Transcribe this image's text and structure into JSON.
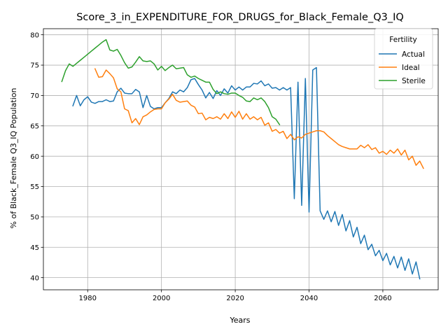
{
  "chart_data": {
    "type": "line",
    "title": "Score_3_in_EXPENDITURE_FOR_DRUGS_for_Black_Female_Q3_IQ",
    "xlabel": "Years",
    "ylabel": "% of Black_Female Q3_IQ Population",
    "xlim": [
      1968,
      2075
    ],
    "ylim": [
      38.0,
      81.0
    ],
    "x_ticks": [
      1980,
      2000,
      2020,
      2040,
      2060
    ],
    "y_ticks": [
      40,
      45,
      50,
      55,
      60,
      65,
      70,
      75,
      80
    ],
    "grid": true,
    "legend": {
      "title": "Fertility",
      "placement": "top-right"
    },
    "series": [
      {
        "name": "Actual",
        "color": "#1f77b4",
        "points": [
          [
            1976,
            68.3
          ],
          [
            1977,
            70.0
          ],
          [
            1978,
            68.3
          ],
          [
            1979,
            69.3
          ],
          [
            1980,
            69.8
          ],
          [
            1981,
            68.9
          ],
          [
            1982,
            68.7
          ],
          [
            1983,
            69.0
          ],
          [
            1984,
            69.0
          ],
          [
            1985,
            69.3
          ],
          [
            1986,
            69.0
          ],
          [
            1987,
            69.1
          ],
          [
            1988,
            70.6
          ],
          [
            1989,
            71.2
          ],
          [
            1990,
            70.4
          ],
          [
            1991,
            70.3
          ],
          [
            1992,
            70.3
          ],
          [
            1993,
            71.0
          ],
          [
            1994,
            70.6
          ],
          [
            1995,
            68.0
          ],
          [
            1996,
            70.0
          ],
          [
            1997,
            68.2
          ],
          [
            1998,
            67.8
          ],
          [
            1999,
            68.0
          ],
          [
            2000,
            68.0
          ],
          [
            2001,
            68.8
          ],
          [
            2002,
            69.5
          ],
          [
            2003,
            70.6
          ],
          [
            2004,
            70.3
          ],
          [
            2005,
            70.9
          ],
          [
            2006,
            70.6
          ],
          [
            2007,
            71.3
          ],
          [
            2008,
            72.6
          ],
          [
            2009,
            72.8
          ],
          [
            2010,
            71.8
          ],
          [
            2011,
            70.9
          ],
          [
            2012,
            69.6
          ],
          [
            2013,
            70.5
          ],
          [
            2014,
            69.5
          ],
          [
            2015,
            70.8
          ],
          [
            2016,
            70.0
          ],
          [
            2017,
            71.1
          ],
          [
            2018,
            70.4
          ],
          [
            2019,
            71.6
          ],
          [
            2020,
            70.9
          ],
          [
            2021,
            71.4
          ],
          [
            2022,
            70.9
          ],
          [
            2023,
            71.4
          ],
          [
            2024,
            71.4
          ],
          [
            2025,
            72.0
          ],
          [
            2026,
            71.9
          ],
          [
            2027,
            72.4
          ],
          [
            2028,
            71.6
          ],
          [
            2029,
            71.9
          ],
          [
            2030,
            71.2
          ],
          [
            2031,
            71.3
          ],
          [
            2032,
            70.9
          ],
          [
            2033,
            71.3
          ],
          [
            2034,
            70.9
          ],
          [
            2035,
            71.3
          ],
          [
            2036,
            53.0
          ],
          [
            2037,
            72.2
          ],
          [
            2038,
            51.9
          ],
          [
            2039,
            72.8
          ],
          [
            2040,
            50.8
          ],
          [
            2041,
            74.2
          ],
          [
            2042,
            74.6
          ],
          [
            2043,
            51.0
          ],
          [
            2044,
            49.6
          ],
          [
            2045,
            51.0
          ],
          [
            2046,
            49.2
          ],
          [
            2047,
            50.9
          ],
          [
            2048,
            48.6
          ],
          [
            2049,
            50.4
          ],
          [
            2050,
            47.7
          ],
          [
            2051,
            49.4
          ],
          [
            2052,
            46.7
          ],
          [
            2053,
            48.3
          ],
          [
            2054,
            45.6
          ],
          [
            2055,
            47.0
          ],
          [
            2056,
            44.6
          ],
          [
            2057,
            45.5
          ],
          [
            2058,
            43.6
          ],
          [
            2059,
            44.5
          ],
          [
            2060,
            42.8
          ],
          [
            2061,
            44.0
          ],
          [
            2062,
            42.1
          ],
          [
            2063,
            43.5
          ],
          [
            2064,
            41.6
          ],
          [
            2065,
            43.4
          ],
          [
            2066,
            41.2
          ],
          [
            2067,
            43.1
          ],
          [
            2068,
            40.6
          ],
          [
            2069,
            42.6
          ],
          [
            2070,
            39.8
          ]
        ]
      },
      {
        "name": "Ideal",
        "color": "#ff7f0e",
        "points": [
          [
            1982,
            74.4
          ],
          [
            1983,
            73.0
          ],
          [
            1984,
            73.1
          ],
          [
            1985,
            74.2
          ],
          [
            1986,
            73.6
          ],
          [
            1987,
            72.9
          ],
          [
            1988,
            71.1
          ],
          [
            1989,
            70.6
          ],
          [
            1990,
            67.8
          ],
          [
            1991,
            67.5
          ],
          [
            1992,
            65.5
          ],
          [
            1993,
            66.2
          ],
          [
            1994,
            65.2
          ],
          [
            1995,
            66.5
          ],
          [
            1996,
            66.8
          ],
          [
            1997,
            67.3
          ],
          [
            1998,
            67.7
          ],
          [
            1999,
            67.8
          ],
          [
            2000,
            67.8
          ],
          [
            2001,
            68.8
          ],
          [
            2002,
            69.4
          ],
          [
            2003,
            70.2
          ],
          [
            2004,
            69.2
          ],
          [
            2005,
            68.9
          ],
          [
            2006,
            69.0
          ],
          [
            2007,
            69.1
          ],
          [
            2008,
            68.4
          ],
          [
            2009,
            68.1
          ],
          [
            2010,
            67.0
          ],
          [
            2011,
            67.1
          ],
          [
            2012,
            66.0
          ],
          [
            2013,
            66.4
          ],
          [
            2014,
            66.2
          ],
          [
            2015,
            66.5
          ],
          [
            2016,
            66.1
          ],
          [
            2017,
            67.0
          ],
          [
            2018,
            66.2
          ],
          [
            2019,
            67.3
          ],
          [
            2020,
            66.4
          ],
          [
            2021,
            67.4
          ],
          [
            2022,
            66.1
          ],
          [
            2023,
            67.0
          ],
          [
            2024,
            66.1
          ],
          [
            2025,
            66.5
          ],
          [
            2026,
            66.0
          ],
          [
            2027,
            66.4
          ],
          [
            2028,
            65.1
          ],
          [
            2029,
            65.5
          ],
          [
            2030,
            64.1
          ],
          [
            2031,
            64.4
          ],
          [
            2032,
            63.8
          ],
          [
            2033,
            64.1
          ],
          [
            2034,
            62.9
          ],
          [
            2035,
            63.6
          ],
          [
            2036,
            62.7
          ],
          [
            2037,
            63.2
          ],
          [
            2038,
            63.0
          ],
          [
            2039,
            63.6
          ],
          [
            2040,
            63.8
          ],
          [
            2041,
            64.0
          ],
          [
            2042,
            64.2
          ],
          [
            2043,
            64.2
          ],
          [
            2044,
            64.0
          ],
          [
            2045,
            63.4
          ],
          [
            2046,
            62.9
          ],
          [
            2047,
            62.4
          ],
          [
            2048,
            61.9
          ],
          [
            2049,
            61.6
          ],
          [
            2050,
            61.4
          ],
          [
            2051,
            61.2
          ],
          [
            2052,
            61.2
          ],
          [
            2053,
            61.2
          ],
          [
            2054,
            61.8
          ],
          [
            2055,
            61.4
          ],
          [
            2056,
            61.9
          ],
          [
            2057,
            61.1
          ],
          [
            2058,
            61.4
          ],
          [
            2059,
            60.5
          ],
          [
            2060,
            60.8
          ],
          [
            2061,
            60.3
          ],
          [
            2062,
            61.0
          ],
          [
            2063,
            60.5
          ],
          [
            2064,
            61.2
          ],
          [
            2065,
            60.2
          ],
          [
            2066,
            61.0
          ],
          [
            2067,
            59.4
          ],
          [
            2068,
            60.0
          ],
          [
            2069,
            58.5
          ],
          [
            2070,
            59.2
          ],
          [
            2071,
            58.0
          ]
        ]
      },
      {
        "name": "Sterile",
        "color": "#2ca02c",
        "points": [
          [
            1973,
            72.3
          ],
          [
            1974,
            74.1
          ],
          [
            1975,
            75.2
          ],
          [
            1976,
            74.8
          ],
          [
            1977,
            75.3
          ],
          [
            1978,
            75.8
          ],
          [
            1979,
            76.3
          ],
          [
            1980,
            76.8
          ],
          [
            1981,
            77.3
          ],
          [
            1982,
            77.8
          ],
          [
            1983,
            78.3
          ],
          [
            1984,
            78.8
          ],
          [
            1985,
            79.2
          ],
          [
            1986,
            77.5
          ],
          [
            1987,
            77.3
          ],
          [
            1988,
            77.6
          ],
          [
            1989,
            76.6
          ],
          [
            1990,
            75.4
          ],
          [
            1991,
            74.5
          ],
          [
            1992,
            74.7
          ],
          [
            1993,
            75.5
          ],
          [
            1994,
            76.4
          ],
          [
            1995,
            75.7
          ],
          [
            1996,
            75.6
          ],
          [
            1997,
            75.7
          ],
          [
            1998,
            75.2
          ],
          [
            1999,
            74.2
          ],
          [
            2000,
            74.8
          ],
          [
            2001,
            74.1
          ],
          [
            2002,
            74.6
          ],
          [
            2003,
            75.0
          ],
          [
            2004,
            74.4
          ],
          [
            2005,
            74.5
          ],
          [
            2006,
            74.6
          ],
          [
            2007,
            73.4
          ],
          [
            2008,
            73.0
          ],
          [
            2009,
            73.2
          ],
          [
            2010,
            72.8
          ],
          [
            2011,
            72.5
          ],
          [
            2012,
            72.2
          ],
          [
            2013,
            72.2
          ],
          [
            2014,
            71.0
          ],
          [
            2015,
            70.3
          ],
          [
            2016,
            70.6
          ],
          [
            2017,
            70.3
          ],
          [
            2018,
            70.2
          ],
          [
            2019,
            70.4
          ],
          [
            2020,
            70.4
          ],
          [
            2021,
            70.0
          ],
          [
            2022,
            69.7
          ],
          [
            2023,
            69.1
          ],
          [
            2024,
            69.0
          ],
          [
            2025,
            69.6
          ],
          [
            2026,
            69.3
          ],
          [
            2027,
            69.6
          ],
          [
            2028,
            69.0
          ],
          [
            2029,
            68.0
          ],
          [
            2030,
            66.5
          ],
          [
            2031,
            66.1
          ],
          [
            2032,
            65.2
          ]
        ]
      }
    ]
  }
}
